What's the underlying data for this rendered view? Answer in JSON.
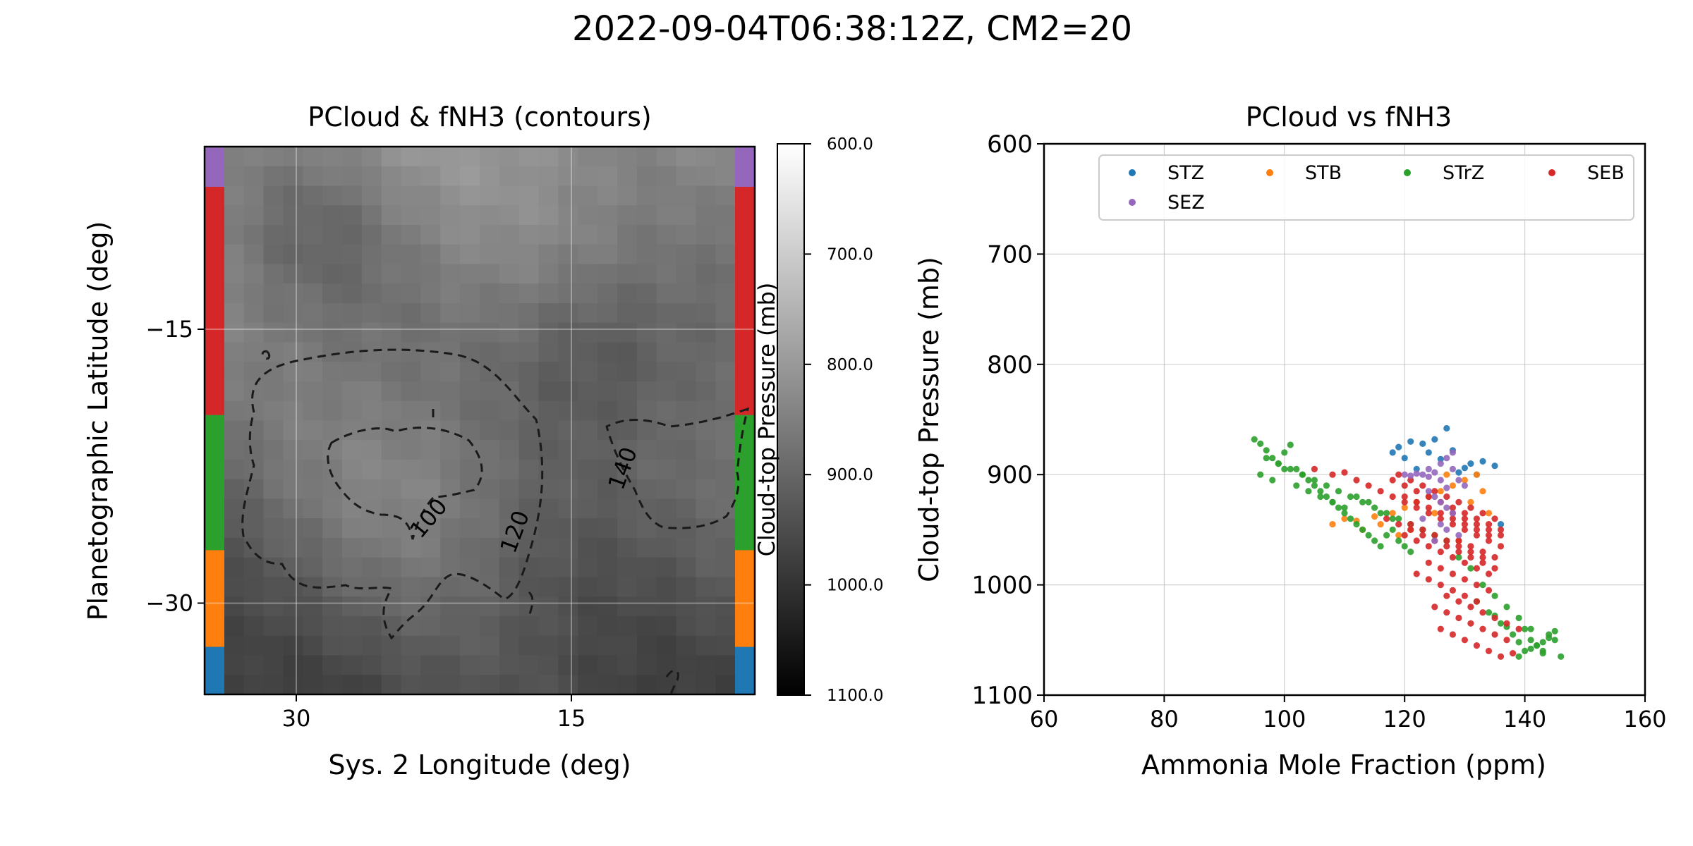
{
  "figure": {
    "suptitle": "2022-09-04T06:38:12Z, CM2=20"
  },
  "colors": {
    "STZ": "#1f77b4",
    "STB": "#ff7f0e",
    "STrZ": "#2ca02c",
    "SEB": "#d62728",
    "SEZ": "#9467bd"
  },
  "chart_data": [
    {
      "type": "heatmap",
      "title": "PCloud & fNH3 (contours)",
      "xlabel": "Sys. 2 Longitude (deg)",
      "ylabel": "Planetographic Latitude (deg)",
      "xlim": [
        35,
        5
      ],
      "ylim": [
        -35,
        -5
      ],
      "xticks": [
        30,
        15
      ],
      "xtick_labels": [
        "30",
        "15"
      ],
      "yticks": [
        -15,
        -30
      ],
      "ytick_labels": [
        "−15",
        "−30"
      ],
      "grid": true,
      "colorbar": {
        "label": "Cloud-top Pressure (mb)",
        "range": [
          600,
          1100
        ],
        "ticks": [
          600,
          700,
          800,
          900,
          1000,
          1100
        ],
        "tick_labels": [
          "600.0",
          "700.0",
          "800.0",
          "900.0",
          "1000.0",
          "1100.0"
        ],
        "colormap": "gray (600 white, 1100 black)"
      },
      "contour_levels": [
        100,
        120,
        140
      ],
      "contour_labels": [
        "100",
        "120",
        "140"
      ],
      "contour_style": "dashed black",
      "belt_bands": [
        {
          "name": "SEZ",
          "lat_range": [
            -5,
            -7.2
          ]
        },
        {
          "name": "SEB",
          "lat_range": [
            -7.2,
            -19.7
          ]
        },
        {
          "name": "STrZ",
          "lat_range": [
            -19.7,
            -27.1
          ]
        },
        {
          "name": "STB",
          "lat_range": [
            -27.1,
            -32.4
          ]
        },
        {
          "name": "STZ",
          "lat_range": [
            -32.4,
            -35
          ]
        }
      ]
    },
    {
      "type": "scatter",
      "title": "PCloud vs fNH3",
      "xlabel": "Ammonia Mole Fraction (ppm)",
      "ylabel": "Cloud-top Pressure (mb)",
      "xlim": [
        60,
        160
      ],
      "ylim": [
        1100,
        600
      ],
      "xticks": [
        60,
        80,
        100,
        120,
        140,
        160
      ],
      "yticks": [
        600,
        700,
        800,
        900,
        1000,
        1100
      ],
      "grid": true,
      "legend_position": "top-right, 4 columns",
      "series": [
        {
          "name": "STZ",
          "x": [
            119,
            121,
            123,
            125,
            127,
            120,
            124,
            128,
            131,
            133,
            135,
            122,
            126,
            130,
            136,
            118,
            129,
            132
          ],
          "y": [
            875,
            870,
            872,
            868,
            858,
            885,
            880,
            878,
            890,
            888,
            892,
            895,
            886,
            894,
            945,
            880,
            898,
            900
          ]
        },
        {
          "name": "STB",
          "x": [
            108,
            110,
            112,
            115,
            118,
            120,
            122,
            124,
            126,
            128,
            130,
            132,
            134,
            119,
            121,
            125,
            129,
            131,
            116,
            113,
            127,
            133
          ],
          "y": [
            945,
            940,
            942,
            938,
            935,
            930,
            925,
            920,
            915,
            910,
            905,
            900,
            935,
            955,
            950,
            935,
            960,
            925,
            945,
            950,
            900,
            915
          ]
        },
        {
          "name": "STrZ",
          "x": [
            95,
            96,
            97,
            98,
            99,
            100,
            101,
            102,
            103,
            104,
            105,
            106,
            107,
            108,
            109,
            110,
            111,
            112,
            113,
            114,
            115,
            116,
            117,
            118,
            119,
            120,
            121,
            96,
            98,
            100,
            102,
            104,
            106,
            108,
            110,
            112,
            114,
            116,
            118,
            97,
            99,
            101,
            103,
            105,
            107,
            109,
            111,
            113,
            115,
            117,
            119,
            121,
            123,
            125,
            127,
            129,
            131,
            133,
            135,
            137,
            139,
            140,
            141,
            142,
            143,
            144,
            145,
            146,
            138,
            136,
            134,
            132,
            140,
            142,
            144,
            139,
            141,
            143,
            145,
            137,
            135,
            139,
            141,
            143
          ],
          "y": [
            868,
            872,
            878,
            885,
            890,
            880,
            873,
            895,
            900,
            905,
            910,
            915,
            920,
            925,
            930,
            935,
            940,
            945,
            950,
            955,
            960,
            965,
            955,
            950,
            960,
            965,
            970,
            900,
            905,
            895,
            910,
            915,
            920,
            925,
            930,
            920,
            925,
            935,
            940,
            885,
            890,
            895,
            900,
            905,
            910,
            915,
            920,
            925,
            930,
            935,
            940,
            945,
            950,
            955,
            960,
            975,
            985,
            1000,
            1010,
            1020,
            1030,
            1040,
            1050,
            1055,
            1060,
            1045,
            1050,
            1065,
            1045,
            1035,
            1025,
            1015,
            1060,
            1055,
            1048,
            1052,
            1058,
            1062,
            1042,
            1038,
            1028,
            1065,
            1040,
            1052
          ]
        },
        {
          "name": "SEB",
          "x": [
            105,
            108,
            110,
            112,
            114,
            116,
            118,
            120,
            122,
            124,
            126,
            128,
            130,
            132,
            134,
            136,
            119,
            121,
            123,
            125,
            127,
            129,
            131,
            133,
            135,
            120,
            122,
            124,
            126,
            128,
            130,
            132,
            134,
            121,
            123,
            125,
            127,
            129,
            131,
            133,
            122,
            124,
            126,
            128,
            130,
            132,
            125,
            127,
            129,
            131,
            133,
            135,
            137,
            126,
            128,
            130,
            132,
            134,
            136,
            138,
            124,
            126,
            128,
            130,
            132,
            134,
            127,
            129,
            131,
            133,
            135,
            137,
            139,
            128,
            130,
            132,
            134,
            136,
            129,
            131,
            133,
            135,
            120,
            122,
            124,
            126,
            128,
            130,
            132,
            134,
            117,
            119,
            121,
            123,
            125,
            127,
            129,
            131,
            133,
            135,
            118,
            120,
            122,
            124,
            126,
            128,
            130,
            132,
            134,
            136
          ],
          "y": [
            895,
            900,
            898,
            905,
            910,
            915,
            920,
            925,
            930,
            935,
            940,
            945,
            950,
            955,
            960,
            965,
            900,
            905,
            910,
            915,
            920,
            925,
            930,
            935,
            940,
            955,
            960,
            965,
            970,
            975,
            980,
            985,
            990,
            945,
            950,
            955,
            960,
            965,
            970,
            975,
            990,
            995,
            1000,
            1005,
            1010,
            1015,
            1020,
            1025,
            1030,
            1035,
            1040,
            1045,
            1050,
            1040,
            1045,
            1050,
            1055,
            1060,
            1065,
            1062,
            980,
            985,
            990,
            995,
            1000,
            1005,
            1010,
            1015,
            1020,
            1025,
            1030,
            1035,
            1040,
            935,
            940,
            945,
            950,
            955,
            960,
            965,
            970,
            975,
            920,
            925,
            930,
            935,
            940,
            945,
            950,
            955,
            940,
            945,
            950,
            955,
            960,
            965,
            970,
            975,
            980,
            985,
            905,
            910,
            915,
            920,
            925,
            930,
            935,
            940,
            945,
            950
          ]
        },
        {
          "name": "SEZ",
          "x": [
            120,
            121,
            122,
            123,
            124,
            125,
            126,
            127,
            128,
            129,
            130,
            124,
            125,
            126,
            127,
            128,
            123,
            126,
            127,
            129,
            125,
            126,
            128,
            124,
            127
          ],
          "y": [
            900,
            901,
            899,
            900,
            902,
            898,
            890,
            885,
            895,
            905,
            910,
            915,
            920,
            925,
            930,
            935,
            940,
            945,
            950,
            955,
            960,
            905,
            880,
            895,
            912
          ]
        }
      ]
    }
  ]
}
